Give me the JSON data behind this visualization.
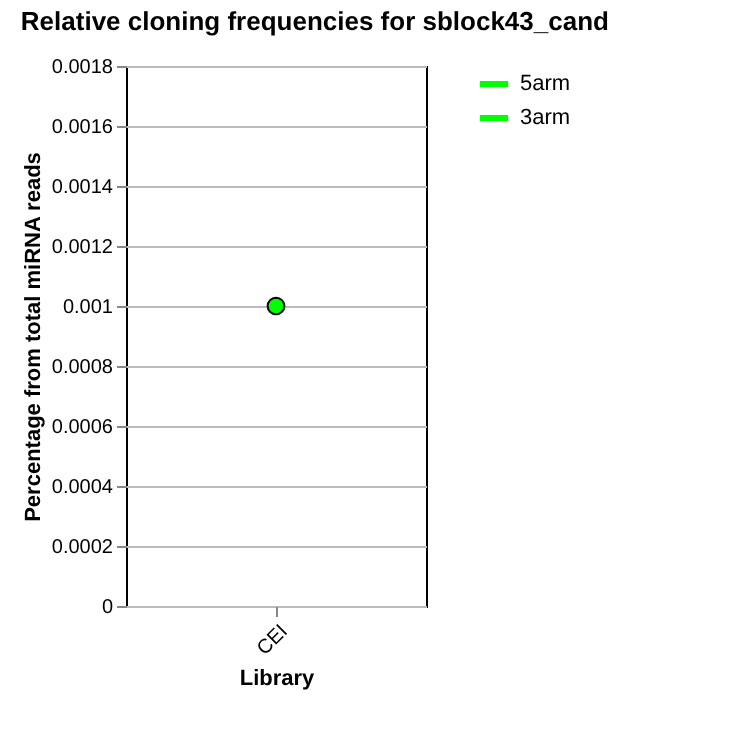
{
  "chart_data": {
    "type": "line",
    "title": "Relative cloning frequencies for sblock43_cand",
    "xlabel": "Library",
    "ylabel": "Percentage from total miRNA reads",
    "categories": [
      "CEI"
    ],
    "series": [
      {
        "name": "5arm",
        "color": "#00ff00",
        "values": [
          0.001
        ]
      },
      {
        "name": "3arm",
        "color": "#00ff00",
        "values": [
          null
        ]
      }
    ],
    "ylim": [
      0,
      0.0018
    ],
    "yticks": [
      0,
      0.0002,
      0.0004,
      0.0006,
      0.0008,
      0.001,
      0.0012,
      0.0014,
      0.0016,
      0.0018
    ],
    "grid": "y",
    "legend": "top right",
    "marker": "circle",
    "line_style": "solid"
  }
}
